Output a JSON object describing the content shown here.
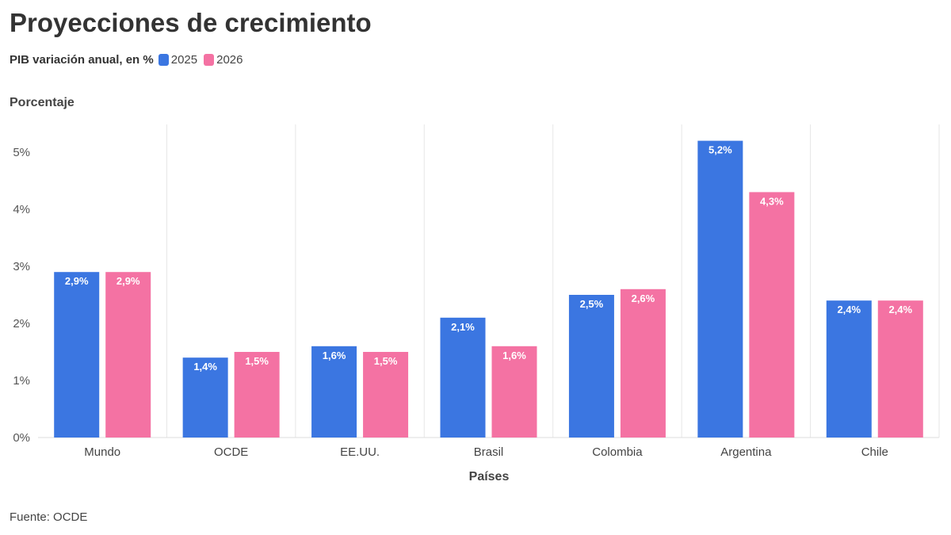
{
  "title": "Proyecciones de crecimiento",
  "subtitle": "PIB variación anual, en %",
  "source": "Fuente: OCDE",
  "colors": {
    "series_2025": "#3b76e1",
    "series_2026": "#f472a3",
    "grid": "#e6e6e6",
    "axis": "#dddddd"
  },
  "chart_data": {
    "type": "bar",
    "title": "Proyecciones de crecimiento",
    "subtitle": "PIB variación anual, en %",
    "ylabel": "Porcentaje",
    "xlabel": "Países",
    "ylim": [
      0,
      5.5
    ],
    "yticks": [
      0,
      1,
      2,
      3,
      4,
      5
    ],
    "ytick_labels": [
      "0%",
      "1%",
      "2%",
      "3%",
      "4%",
      "5%"
    ],
    "categories": [
      "Mundo",
      "OCDE",
      "EE.UU.",
      "Brasil",
      "Colombia",
      "Argentina",
      "Chile"
    ],
    "series": [
      {
        "name": "2025",
        "values": [
          2.9,
          1.4,
          1.6,
          2.1,
          2.5,
          5.2,
          2.4
        ],
        "labels": [
          "2,9%",
          "1,4%",
          "1,6%",
          "2,1%",
          "2,5%",
          "5,2%",
          "2,4%"
        ]
      },
      {
        "name": "2026",
        "values": [
          2.9,
          1.5,
          1.5,
          1.6,
          2.6,
          4.3,
          2.4
        ],
        "labels": [
          "2,9%",
          "1,5%",
          "1,5%",
          "1,6%",
          "2,6%",
          "4,3%",
          "2,4%"
        ]
      }
    ],
    "legend_position": "top-left",
    "grid": true
  }
}
